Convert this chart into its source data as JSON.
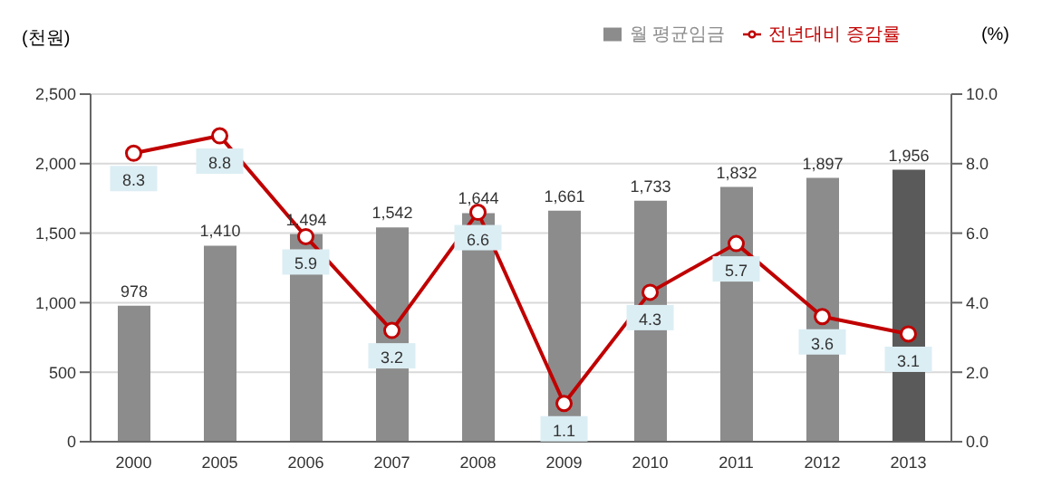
{
  "chart_data": {
    "type": "bar",
    "ylabel": "(천원)",
    "y2label": "(%)",
    "categories": [
      "2000",
      "2005",
      "2006",
      "2007",
      "2008",
      "2009",
      "2010",
      "2011",
      "2012",
      "2013"
    ],
    "series": [
      {
        "name": "월 평균임금",
        "value_labels": [
          "978",
          "1,410",
          "1,494",
          "1,542",
          "1,644",
          "1,661",
          "1,733",
          "1,832",
          "1,897",
          "1,956"
        ],
        "color": "#8c8c8c",
        "colors": [
          "#8c8c8c",
          "#8c8c8c",
          "#8c8c8c",
          "#8c8c8c",
          "#8c8c8c",
          "#8c8c8c",
          "#8c8c8c",
          "#8c8c8c",
          "#8c8c8c",
          "#5a5a5a"
        ],
        "values": [
          978,
          1410,
          1494,
          1542,
          1644,
          1661,
          1733,
          1832,
          1897,
          1956
        ]
      },
      {
        "name": "전년대비 증감률",
        "type": "line",
        "axis": "y2",
        "color": "#c00000",
        "values": [
          8.3,
          8.8,
          5.9,
          3.2,
          6.6,
          1.1,
          4.3,
          5.7,
          3.6,
          3.1
        ]
      }
    ],
    "ylim": [
      0,
      2500
    ],
    "yticks": [
      0,
      500,
      {
        "value": 1000,
        "label": "1,000"
      },
      {
        "value": 1500,
        "label": "1,500"
      },
      {
        "value": 2000,
        "label": "2,000"
      },
      {
        "value": 2500,
        "label": "2,500"
      }
    ],
    "y2lim": [
      0,
      10
    ],
    "y2ticks": [
      {
        "value": 0,
        "label": "0.0"
      },
      {
        "value": 2,
        "label": "2.0"
      },
      {
        "value": 4,
        "label": "4.0"
      },
      {
        "value": 6,
        "label": "6.0"
      },
      {
        "value": 8,
        "label": "8.0"
      },
      {
        "value": 10,
        "label": "10.0"
      }
    ],
    "grid": "y",
    "legend": "top right",
    "marker": "circle",
    "line_style": "solid",
    "data_labels": true
  }
}
